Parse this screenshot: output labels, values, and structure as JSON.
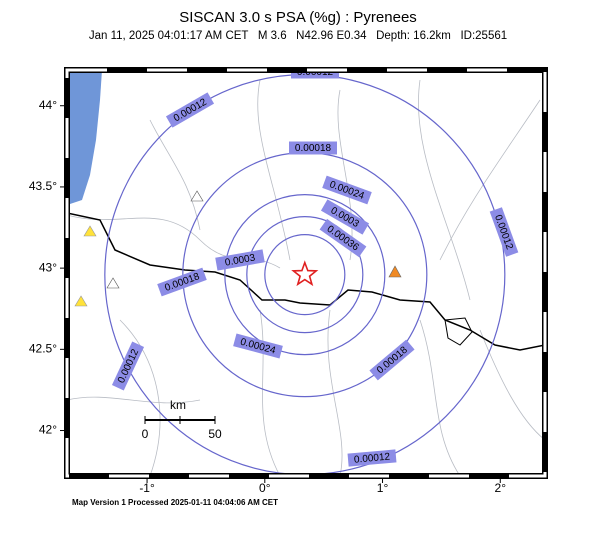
{
  "header": {
    "title": "SISCAN 3.0 s PSA (%g) : Pyrenees",
    "subtitle": "Jan 11, 2025 04:01:17 AM CET   M 3.6   N42.96 E0.34   Depth: 16.2km   ID:25561"
  },
  "map": {
    "xlim": [
      -1.68,
      2.38
    ],
    "ylim": [
      41.72,
      44.22
    ],
    "xticks": [
      {
        "value": -1,
        "label": "-1°"
      },
      {
        "value": 0,
        "label": "0°"
      },
      {
        "value": 1,
        "label": "1°"
      },
      {
        "value": 2,
        "label": "2°"
      }
    ],
    "yticks": [
      {
        "value": 42,
        "label": "42°"
      },
      {
        "value": 42.5,
        "label": "42.5°"
      },
      {
        "value": 43,
        "label": "43°"
      },
      {
        "value": 43.5,
        "label": "43.5°"
      },
      {
        "value": 44,
        "label": "44°"
      }
    ],
    "epicenter": {
      "lon": 0.34,
      "lat": 42.96
    }
  },
  "contours": [
    {
      "level": 0.00012
    },
    {
      "level": 0.00018
    },
    {
      "level": 0.00024
    },
    {
      "level": 0.0003
    },
    {
      "level": 0.00036
    }
  ],
  "scale_bar": {
    "unit": "km",
    "start": "0",
    "end": "50"
  },
  "footer": "Map Version 1 Processed 2025-01-11 04:04:06 AM CET"
}
